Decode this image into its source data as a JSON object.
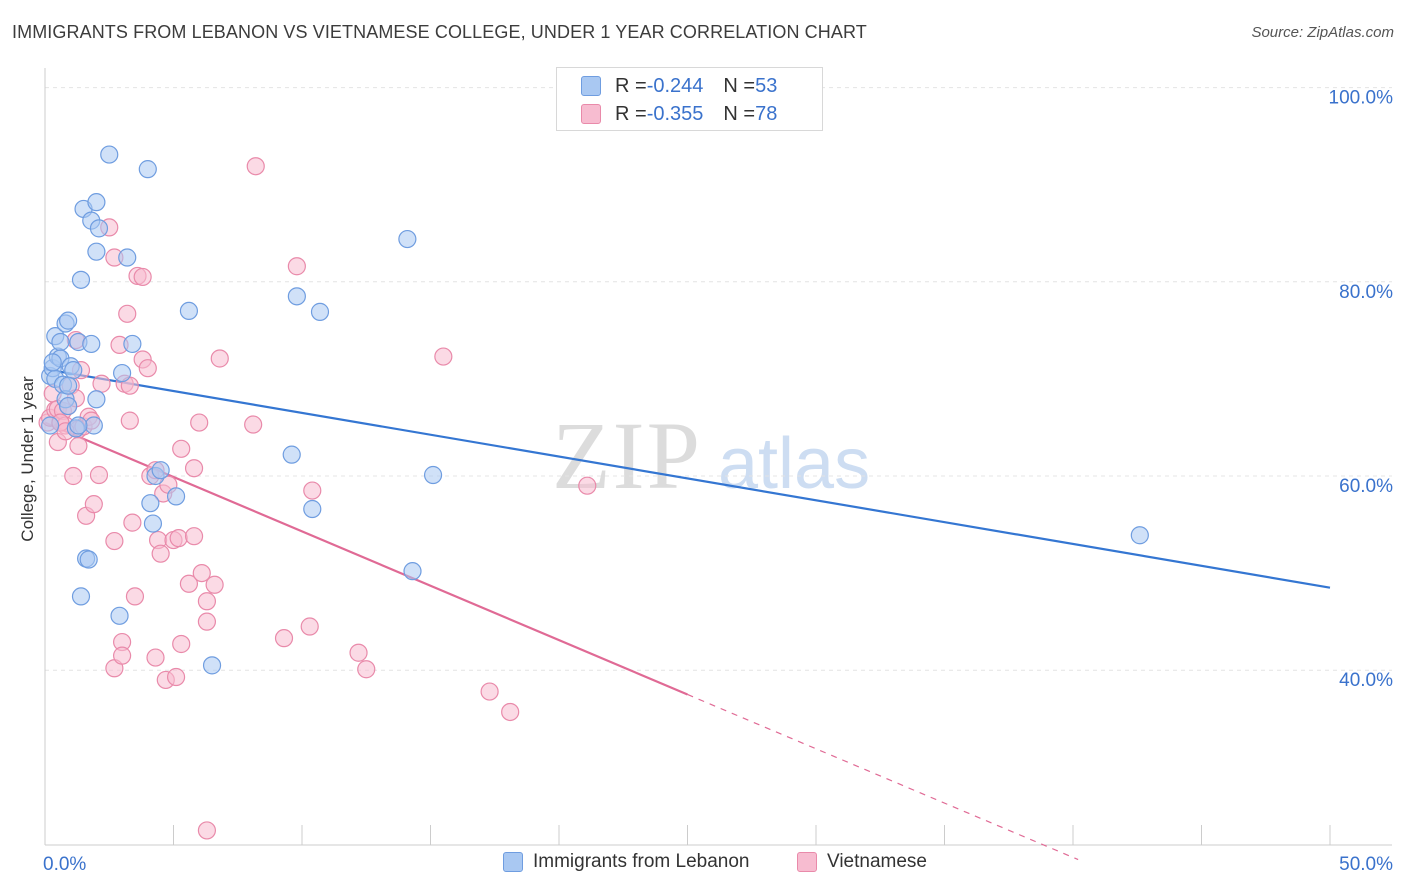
{
  "title": "IMMIGRANTS FROM LEBANON VS VIETNAMESE COLLEGE, UNDER 1 YEAR CORRELATION CHART",
  "source": "Source: ZipAtlas.com",
  "watermark": {
    "zip": "ZIP",
    "atlas": "atlas"
  },
  "legend_top": {
    "rows": [
      {
        "r_label": "R = ",
        "r_value": "-0.244",
        "n_label": "N = ",
        "n_value": "53"
      },
      {
        "r_label": "R = ",
        "r_value": "-0.355",
        "n_label": "N = ",
        "n_value": "78"
      }
    ]
  },
  "legend_bottom": [
    {
      "label": "Immigrants from Lebanon"
    },
    {
      "label": "Vietnamese"
    }
  ],
  "colors": {
    "lebanon_fill": "#a9c8f2",
    "lebanon_stroke": "#6f9de0",
    "lebanon_line": "#3476d2",
    "viet_fill": "#f7bcd0",
    "viet_stroke": "#e98aaa",
    "viet_line": "#e06a95",
    "tick_label": "#3a72cc",
    "grid": "#e4e4e4"
  },
  "chart_data": {
    "type": "scatter",
    "title": "IMMIGRANTS FROM LEBANON VS VIETNAMESE COLLEGE, UNDER 1 YEAR CORRELATION CHART",
    "xlabel": "",
    "ylabel": "College, Under 1 year",
    "xlim": [
      0,
      50
    ],
    "ylim": [
      22,
      101.5
    ],
    "x_tick_labels": [
      "0.0%",
      "50.0%"
    ],
    "y_ticks": [
      {
        "value": 40,
        "label": "40.0%"
      },
      {
        "value": 60,
        "label": "60.0%"
      },
      {
        "value": 80,
        "label": "80.0%"
      },
      {
        "value": 100,
        "label": "100.0%"
      }
    ],
    "series": [
      {
        "name": "Immigrants from Lebanon",
        "R": -0.244,
        "N": 53,
        "trend": {
          "x": [
            0,
            50
          ],
          "y": [
            71.0,
            48.5
          ],
          "dashed_after": null
        },
        "points": [
          [
            0.2,
            65.2
          ],
          [
            0.2,
            70.3
          ],
          [
            0.3,
            71.1
          ],
          [
            0.4,
            74.4
          ],
          [
            0.4,
            70.0
          ],
          [
            0.5,
            72.3
          ],
          [
            0.6,
            73.8
          ],
          [
            0.6,
            72.1
          ],
          [
            0.7,
            69.4
          ],
          [
            0.8,
            67.9
          ],
          [
            0.8,
            75.7
          ],
          [
            0.9,
            76.0
          ],
          [
            0.9,
            67.2
          ],
          [
            1.0,
            71.3
          ],
          [
            1.1,
            70.9
          ],
          [
            1.2,
            64.9
          ],
          [
            1.3,
            73.8
          ],
          [
            1.4,
            80.2
          ],
          [
            1.5,
            87.5
          ],
          [
            1.6,
            51.5
          ],
          [
            1.7,
            51.4
          ],
          [
            1.8,
            73.6
          ],
          [
            1.8,
            86.3
          ],
          [
            1.9,
            65.2
          ],
          [
            2.0,
            88.2
          ],
          [
            2.0,
            83.1
          ],
          [
            2.1,
            85.5
          ],
          [
            2.5,
            93.1
          ],
          [
            3.0,
            70.6
          ],
          [
            3.2,
            82.5
          ],
          [
            3.4,
            73.6
          ],
          [
            4.0,
            91.6
          ],
          [
            4.1,
            57.2
          ],
          [
            4.2,
            55.1
          ],
          [
            4.3,
            60.0
          ],
          [
            4.5,
            60.6
          ],
          [
            5.1,
            57.9
          ],
          [
            5.6,
            77.0
          ],
          [
            6.5,
            40.5
          ],
          [
            9.6,
            62.2
          ],
          [
            9.8,
            78.5
          ],
          [
            10.4,
            56.6
          ],
          [
            10.7,
            76.9
          ],
          [
            14.1,
            84.4
          ],
          [
            14.3,
            50.2
          ],
          [
            15.1,
            60.1
          ],
          [
            42.6,
            53.9
          ],
          [
            1.4,
            47.6
          ],
          [
            2.0,
            67.9
          ],
          [
            2.9,
            45.6
          ],
          [
            1.3,
            65.2
          ],
          [
            0.9,
            69.3
          ],
          [
            0.3,
            71.7
          ]
        ]
      },
      {
        "name": "Vietnamese",
        "R": -0.355,
        "N": 78,
        "trend": {
          "x": [
            0,
            25
          ],
          "y": [
            65.5,
            37.5
          ],
          "dashed_after": [
            25,
            40.2,
            20.5
          ]
        },
        "points": [
          [
            0.1,
            65.5
          ],
          [
            0.2,
            66.0
          ],
          [
            0.3,
            68.5
          ],
          [
            0.4,
            66.8
          ],
          [
            0.5,
            66.9
          ],
          [
            0.5,
            63.5
          ],
          [
            0.6,
            65.5
          ],
          [
            0.7,
            66.7
          ],
          [
            0.8,
            65.2
          ],
          [
            0.9,
            67.2
          ],
          [
            1.0,
            69.3
          ],
          [
            1.1,
            60.0
          ],
          [
            1.2,
            68.0
          ],
          [
            1.2,
            74.0
          ],
          [
            1.3,
            64.8
          ],
          [
            1.3,
            63.1
          ],
          [
            1.5,
            65.1
          ],
          [
            1.6,
            55.9
          ],
          [
            1.7,
            66.1
          ],
          [
            1.8,
            65.7
          ],
          [
            1.9,
            57.1
          ],
          [
            2.1,
            60.1
          ],
          [
            2.2,
            69.5
          ],
          [
            2.5,
            85.6
          ],
          [
            2.7,
            53.3
          ],
          [
            2.7,
            82.5
          ],
          [
            2.7,
            40.2
          ],
          [
            2.9,
            73.5
          ],
          [
            3.0,
            42.9
          ],
          [
            3.0,
            41.5
          ],
          [
            3.1,
            69.5
          ],
          [
            3.2,
            76.7
          ],
          [
            3.3,
            69.3
          ],
          [
            3.3,
            65.7
          ],
          [
            3.4,
            55.2
          ],
          [
            3.5,
            47.6
          ],
          [
            3.6,
            80.6
          ],
          [
            3.8,
            80.5
          ],
          [
            3.8,
            72.0
          ],
          [
            4.0,
            71.1
          ],
          [
            4.1,
            60.0
          ],
          [
            4.3,
            60.6
          ],
          [
            4.3,
            41.3
          ],
          [
            4.4,
            53.4
          ],
          [
            4.5,
            52.0
          ],
          [
            4.6,
            58.2
          ],
          [
            4.7,
            39.0
          ],
          [
            4.8,
            59.1
          ],
          [
            5.0,
            53.4
          ],
          [
            5.1,
            39.3
          ],
          [
            5.2,
            53.6
          ],
          [
            5.3,
            62.8
          ],
          [
            5.3,
            42.7
          ],
          [
            5.6,
            48.9
          ],
          [
            5.8,
            53.8
          ],
          [
            5.8,
            60.8
          ],
          [
            6.0,
            65.5
          ],
          [
            6.1,
            50.0
          ],
          [
            6.3,
            47.1
          ],
          [
            6.3,
            45.0
          ],
          [
            6.6,
            48.8
          ],
          [
            6.8,
            72.1
          ],
          [
            6.3,
            23.5
          ],
          [
            8.1,
            65.3
          ],
          [
            8.2,
            91.9
          ],
          [
            9.3,
            43.3
          ],
          [
            9.8,
            81.6
          ],
          [
            10.3,
            44.5
          ],
          [
            10.4,
            58.5
          ],
          [
            12.2,
            41.8
          ],
          [
            12.5,
            40.1
          ],
          [
            15.5,
            72.3
          ],
          [
            17.3,
            37.8
          ],
          [
            18.1,
            35.7
          ],
          [
            21.1,
            59.0
          ],
          [
            0.6,
            65.5
          ],
          [
            0.8,
            64.6
          ],
          [
            1.4,
            70.9
          ]
        ]
      }
    ]
  }
}
